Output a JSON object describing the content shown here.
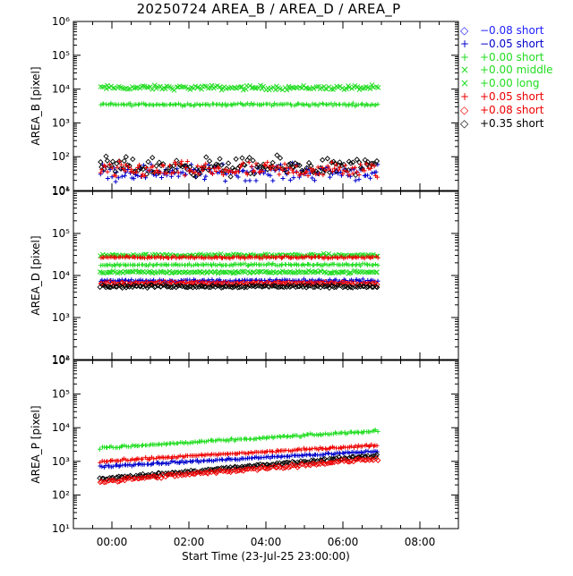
{
  "title": "20250724 AREA_B / AREA_D / AREA_P",
  "colors": {
    "neg008_short": "#2020ff",
    "neg005_short": "#0000cc",
    "pos000_short": "#22dd22",
    "pos000_middle": "#22dd22",
    "pos000_long": "#22dd22",
    "pos005_short": "#ee0000",
    "pos008_short": "#ee0000",
    "pos035_short": "#000000"
  },
  "legend": [
    {
      "marker": "◇",
      "label": "−0.08 short",
      "color": "#2020ff"
    },
    {
      "marker": "+",
      "label": "−0.05 short",
      "color": "#0000cc"
    },
    {
      "marker": "+",
      "label": "+0.00 short",
      "color": "#22dd22"
    },
    {
      "marker": "×",
      "label": "+0.00 middle",
      "color": "#22dd22"
    },
    {
      "marker": "×",
      "label": "+0.00 long",
      "color": "#22dd22"
    },
    {
      "marker": "+",
      "label": "+0.05 short",
      "color": "#ee0000"
    },
    {
      "marker": "◇",
      "label": "+0.08 short",
      "color": "#ee0000"
    },
    {
      "marker": "◇",
      "label": "+0.35 short",
      "color": "#000000"
    }
  ],
  "xaxis": {
    "label": "Start Time (23-Jul-25 23:00:00)",
    "tick_labels": [
      "00:00",
      "02:00",
      "04:00",
      "06:00",
      "08:00"
    ],
    "range_hours": [
      -1,
      9
    ]
  },
  "chart_data": [
    {
      "type": "scatter",
      "ylabel": "AREA_B [pixel]",
      "yscale": "log",
      "ylim": [
        10,
        1000000
      ],
      "y_tick_labels": [
        "10¹",
        "10²",
        "10³",
        "10⁴",
        "10⁵",
        "10⁶"
      ],
      "time_range_hours": [
        -0.3,
        6.9
      ],
      "series": [
        {
          "name": "+0.00 middle",
          "level": 11000,
          "spread": 0.1
        },
        {
          "name": "+0.00 short",
          "level": 3500,
          "spread": 0.06
        },
        {
          "name": "−0.05 short",
          "level": 35,
          "spread": 0.35
        },
        {
          "name": "+0.35 short",
          "level": 50,
          "spread": 0.4
        },
        {
          "name": "+0.05 short",
          "level": 40,
          "spread": 0.35
        }
      ]
    },
    {
      "type": "scatter",
      "ylabel": "AREA_D [pixel]",
      "yscale": "log",
      "ylim": [
        100,
        1000000
      ],
      "y_tick_labels": [
        "10²",
        "10³",
        "10⁴",
        "10⁵",
        "10⁶"
      ],
      "time_range_hours": [
        -0.3,
        6.9
      ],
      "series": [
        {
          "name": "+0.00 middle",
          "level": 30000,
          "spread": 0.05
        },
        {
          "name": "+0.05 short",
          "level": 27000,
          "spread": 0.04
        },
        {
          "name": "+0.00 short",
          "level": 18000,
          "spread": 0.04
        },
        {
          "name": "+0.00 long",
          "level": 12000,
          "spread": 0.04
        },
        {
          "name": "−0.05 short",
          "level": 7500,
          "spread": 0.05
        },
        {
          "name": "+0.08 short",
          "level": 6500,
          "spread": 0.05
        },
        {
          "name": "+0.35 short",
          "level": 5500,
          "spread": 0.05
        }
      ]
    },
    {
      "type": "scatter",
      "ylabel": "AREA_P [pixel]",
      "yscale": "log",
      "ylim": [
        10,
        1000000
      ],
      "y_tick_labels": [
        "10¹",
        "10²",
        "10³",
        "10⁴",
        "10⁵",
        "10⁶"
      ],
      "time_range_hours": [
        -0.3,
        6.9
      ],
      "series": [
        {
          "name": "+0.00 short",
          "level_start": 2500,
          "level_end": 8000,
          "spread": 0.05
        },
        {
          "name": "+0.05 short",
          "level_start": 1000,
          "level_end": 3000,
          "spread": 0.05
        },
        {
          "name": "−0.05 short",
          "level_start": 700,
          "level_end": 2000,
          "spread": 0.05
        },
        {
          "name": "+0.35 short",
          "level_start": 300,
          "level_end": 1500,
          "spread": 0.06
        },
        {
          "name": "+0.08 short",
          "level_start": 250,
          "level_end": 1200,
          "spread": 0.08
        }
      ]
    }
  ]
}
